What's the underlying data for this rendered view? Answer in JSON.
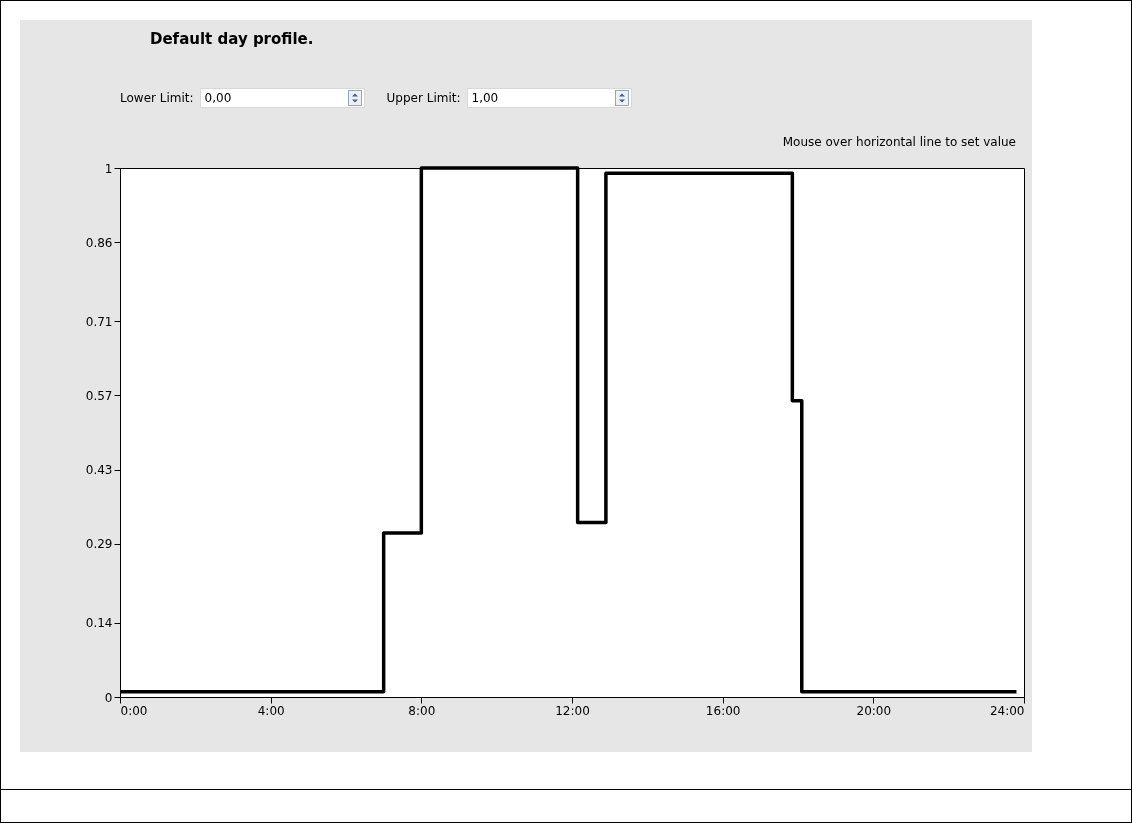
{
  "chart_data": {
    "type": "step",
    "title": "Default day profile.",
    "annotations": [
      "Lower Limit:",
      "0,00",
      "Upper Limit:",
      "1,00",
      "Mouse over horizontal line to set value"
    ],
    "x": [
      0,
      7,
      8,
      12.15,
      12.9,
      17.85,
      18.1,
      23.8
    ],
    "series": [
      {
        "color": "#000000",
        "values": [
          0.01,
          0.31,
          1,
          0.33,
          0.99,
          0.56,
          0.01,
          0.01
        ]
      }
    ],
    "xlim": [
      0,
      24
    ],
    "xticks": [
      {
        "value": 0,
        "label": "0:00"
      },
      {
        "value": 4,
        "label": "4:00"
      },
      {
        "value": 8,
        "label": "8:00"
      },
      {
        "value": 12,
        "label": "12:00"
      },
      {
        "value": 16,
        "label": "16:00"
      },
      {
        "value": 20,
        "label": "20:00"
      },
      {
        "value": 24,
        "label": "24:00"
      }
    ],
    "ylim": [
      0,
      1
    ],
    "yticks": [
      0,
      0.14,
      0.29,
      0.43,
      0.57,
      0.71,
      0.86,
      1
    ],
    "grid": false,
    "line_style": "solid"
  }
}
